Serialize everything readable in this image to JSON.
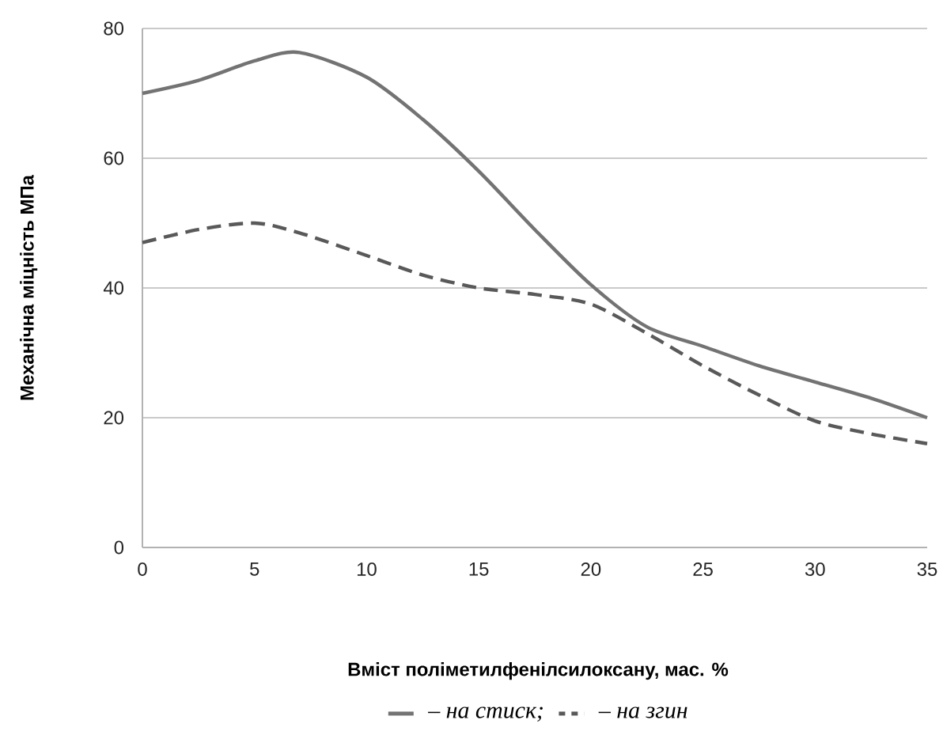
{
  "chart_data": {
    "type": "line",
    "xlabel": "Вміст поліметилфенілсилоксану, мас. %",
    "ylabel": "Механічна міцність МПа",
    "x": [
      0,
      2.5,
      5,
      7,
      10,
      12.5,
      15,
      17.5,
      20,
      22.5,
      25,
      27.5,
      30,
      32.5,
      35
    ],
    "series": [
      {
        "name": "– на стиск;",
        "color": "#737373",
        "line_style": "solid",
        "values": [
          70,
          72,
          75,
          76.3,
          72.5,
          66,
          58,
          49,
          40.5,
          34,
          31,
          28,
          25.5,
          23,
          20
        ]
      },
      {
        "name": "– на згин",
        "color": "#595959",
        "line_style": "dashed",
        "values": [
          47,
          49,
          50,
          48.5,
          45,
          42,
          40,
          39,
          37.5,
          33,
          28,
          23.5,
          19.5,
          17.5,
          16
        ]
      }
    ],
    "xlim": [
      0,
      35
    ],
    "ylim": [
      0,
      80
    ],
    "xticks": [
      0,
      5,
      10,
      15,
      20,
      25,
      30,
      35
    ],
    "yticks": [
      0,
      20,
      40,
      60,
      80
    ],
    "grid": "y",
    "legend": "bottom",
    "marker": "none"
  }
}
